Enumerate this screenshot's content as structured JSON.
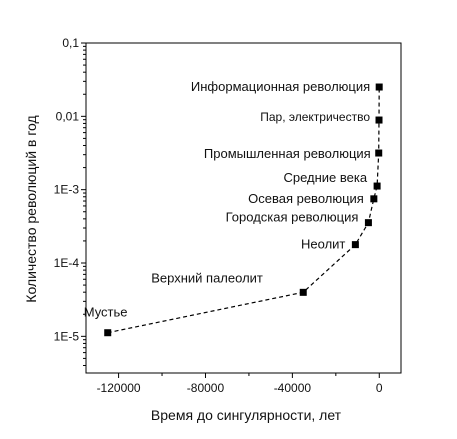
{
  "chart_data": {
    "type": "scatter",
    "xlabel": "Время до сингулярности, лет",
    "ylabel": "Количество революций в год",
    "xlim": [
      -135000,
      10000
    ],
    "ylim": [
      3e-06,
      0.1
    ],
    "yscale": "log",
    "x_ticks": [
      {
        "value": -120000,
        "label": "-120000"
      },
      {
        "value": -80000,
        "label": "-80000"
      },
      {
        "value": -40000,
        "label": "-40000"
      },
      {
        "value": 0,
        "label": "0"
      }
    ],
    "y_ticks": [
      {
        "value": 0.1,
        "label": "0,1"
      },
      {
        "value": 0.01,
        "label": "0,01"
      },
      {
        "value": 0.001,
        "label": "1E-3"
      },
      {
        "value": 0.0001,
        "label": "1E-4"
      },
      {
        "value": 1e-05,
        "label": "1E-5"
      }
    ],
    "points": [
      {
        "label": "Мустье",
        "x": -125000,
        "y": 1.12e-05
      },
      {
        "label": "Верхний палеолит",
        "x": -35000,
        "y": 3.98e-05
      },
      {
        "label": "Неолит",
        "x": -11000,
        "y": 0.000178
      },
      {
        "label": "Городская революция",
        "x": -5000,
        "y": 0.000355
      },
      {
        "label": "Осевая революция",
        "x": -2500,
        "y": 0.00075
      },
      {
        "label": "Средние века",
        "x": -1000,
        "y": 0.00112
      },
      {
        "label": "Промышленная революция",
        "x": -250,
        "y": 0.00316
      },
      {
        "label": "Пар, электричество",
        "x": -120,
        "y": 0.0089
      },
      {
        "label": "Информационная революция",
        "x": -40,
        "y": 0.0251
      }
    ],
    "trend_line": "dashed",
    "grid": false,
    "marker": "square",
    "color": "#000000"
  }
}
